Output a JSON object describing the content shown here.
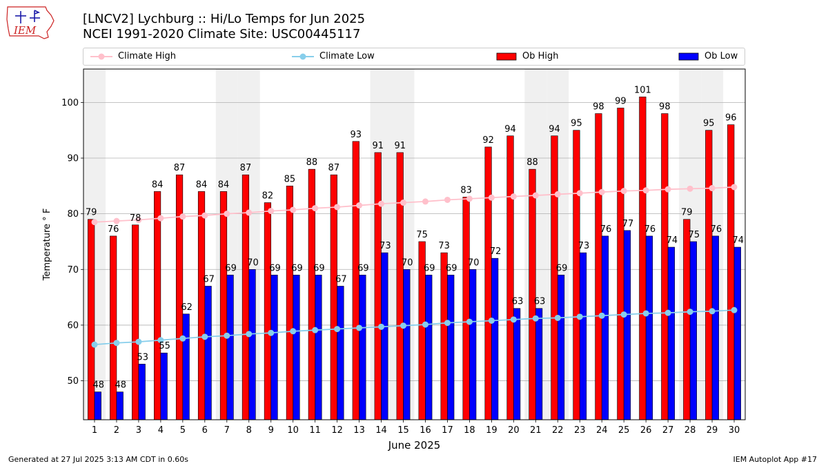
{
  "title_line1": "[LNCV2] Lychburg :: Hi/Lo Temps for Jun 2025",
  "title_line2": "NCEI 1991-2020 Climate Site: USC00445117",
  "logo_text": "IEM",
  "footer_left": "Generated at 27 Jul 2025 3:13 AM CDT in 0.60s",
  "footer_right": "IEM Autoplot App #17",
  "colors": {
    "ob_high": "#ff0000",
    "ob_low": "#0000ff",
    "climate_high": "#ffc0cb",
    "climate_low": "#87ceeb",
    "weekend_shade": "#f0f0f0",
    "grid": "#b0b0b0",
    "logo_red": "#cc2222",
    "logo_blue": "#1a1aa8"
  },
  "chart_data": {
    "type": "bar",
    "xlabel": "June 2025",
    "ylabel": "Temperature ° F",
    "xlim": [
      0.5,
      30.5
    ],
    "ylim": [
      43,
      106
    ],
    "yticks": [
      50,
      60,
      70,
      80,
      90,
      100
    ],
    "grid": "horizontal",
    "legend_position": "top",
    "categories": [
      "1",
      "2",
      "3",
      "4",
      "5",
      "6",
      "7",
      "8",
      "9",
      "10",
      "11",
      "12",
      "13",
      "14",
      "15",
      "16",
      "17",
      "18",
      "19",
      "20",
      "21",
      "22",
      "23",
      "24",
      "25",
      "26",
      "27",
      "28",
      "29",
      "30"
    ],
    "weekend_days": [
      1,
      7,
      8,
      14,
      15,
      21,
      22,
      28,
      29
    ],
    "series": [
      {
        "name": "Ob High",
        "kind": "bar",
        "values": [
          79,
          76,
          78,
          84,
          87,
          84,
          84,
          87,
          82,
          85,
          88,
          87,
          93,
          91,
          91,
          75,
          73,
          83,
          92,
          94,
          88,
          94,
          95,
          98,
          99,
          101,
          98,
          79,
          95,
          96
        ]
      },
      {
        "name": "Ob Low",
        "kind": "bar",
        "values": [
          48,
          48,
          53,
          55,
          62,
          67,
          69,
          70,
          69,
          69,
          69,
          67,
          69,
          73,
          70,
          69,
          69,
          70,
          72,
          63,
          63,
          69,
          73,
          76,
          77,
          76,
          74,
          75,
          76,
          74
        ]
      },
      {
        "name": "Climate High",
        "kind": "line",
        "values": [
          78.5,
          78.7,
          78.9,
          79.2,
          79.5,
          79.7,
          80.0,
          80.2,
          80.5,
          80.7,
          81.0,
          81.2,
          81.5,
          81.8,
          82.0,
          82.2,
          82.5,
          82.7,
          82.9,
          83.1,
          83.3,
          83.5,
          83.7,
          83.9,
          84.1,
          84.2,
          84.4,
          84.5,
          84.6,
          84.8
        ]
      },
      {
        "name": "Climate Low",
        "kind": "line",
        "values": [
          56.5,
          56.8,
          57.0,
          57.3,
          57.6,
          57.9,
          58.1,
          58.4,
          58.6,
          58.9,
          59.1,
          59.3,
          59.5,
          59.7,
          59.9,
          60.1,
          60.4,
          60.6,
          60.8,
          61.0,
          61.2,
          61.3,
          61.5,
          61.7,
          61.9,
          62.1,
          62.2,
          62.4,
          62.5,
          62.7
        ]
      }
    ],
    "legend": [
      {
        "label": "Climate High",
        "kind": "line",
        "color_key": "climate_high"
      },
      {
        "label": "Climate Low",
        "kind": "line",
        "color_key": "climate_low"
      },
      {
        "label": "Ob High",
        "kind": "box",
        "color_key": "ob_high"
      },
      {
        "label": "Ob Low",
        "kind": "box",
        "color_key": "ob_low"
      }
    ]
  }
}
